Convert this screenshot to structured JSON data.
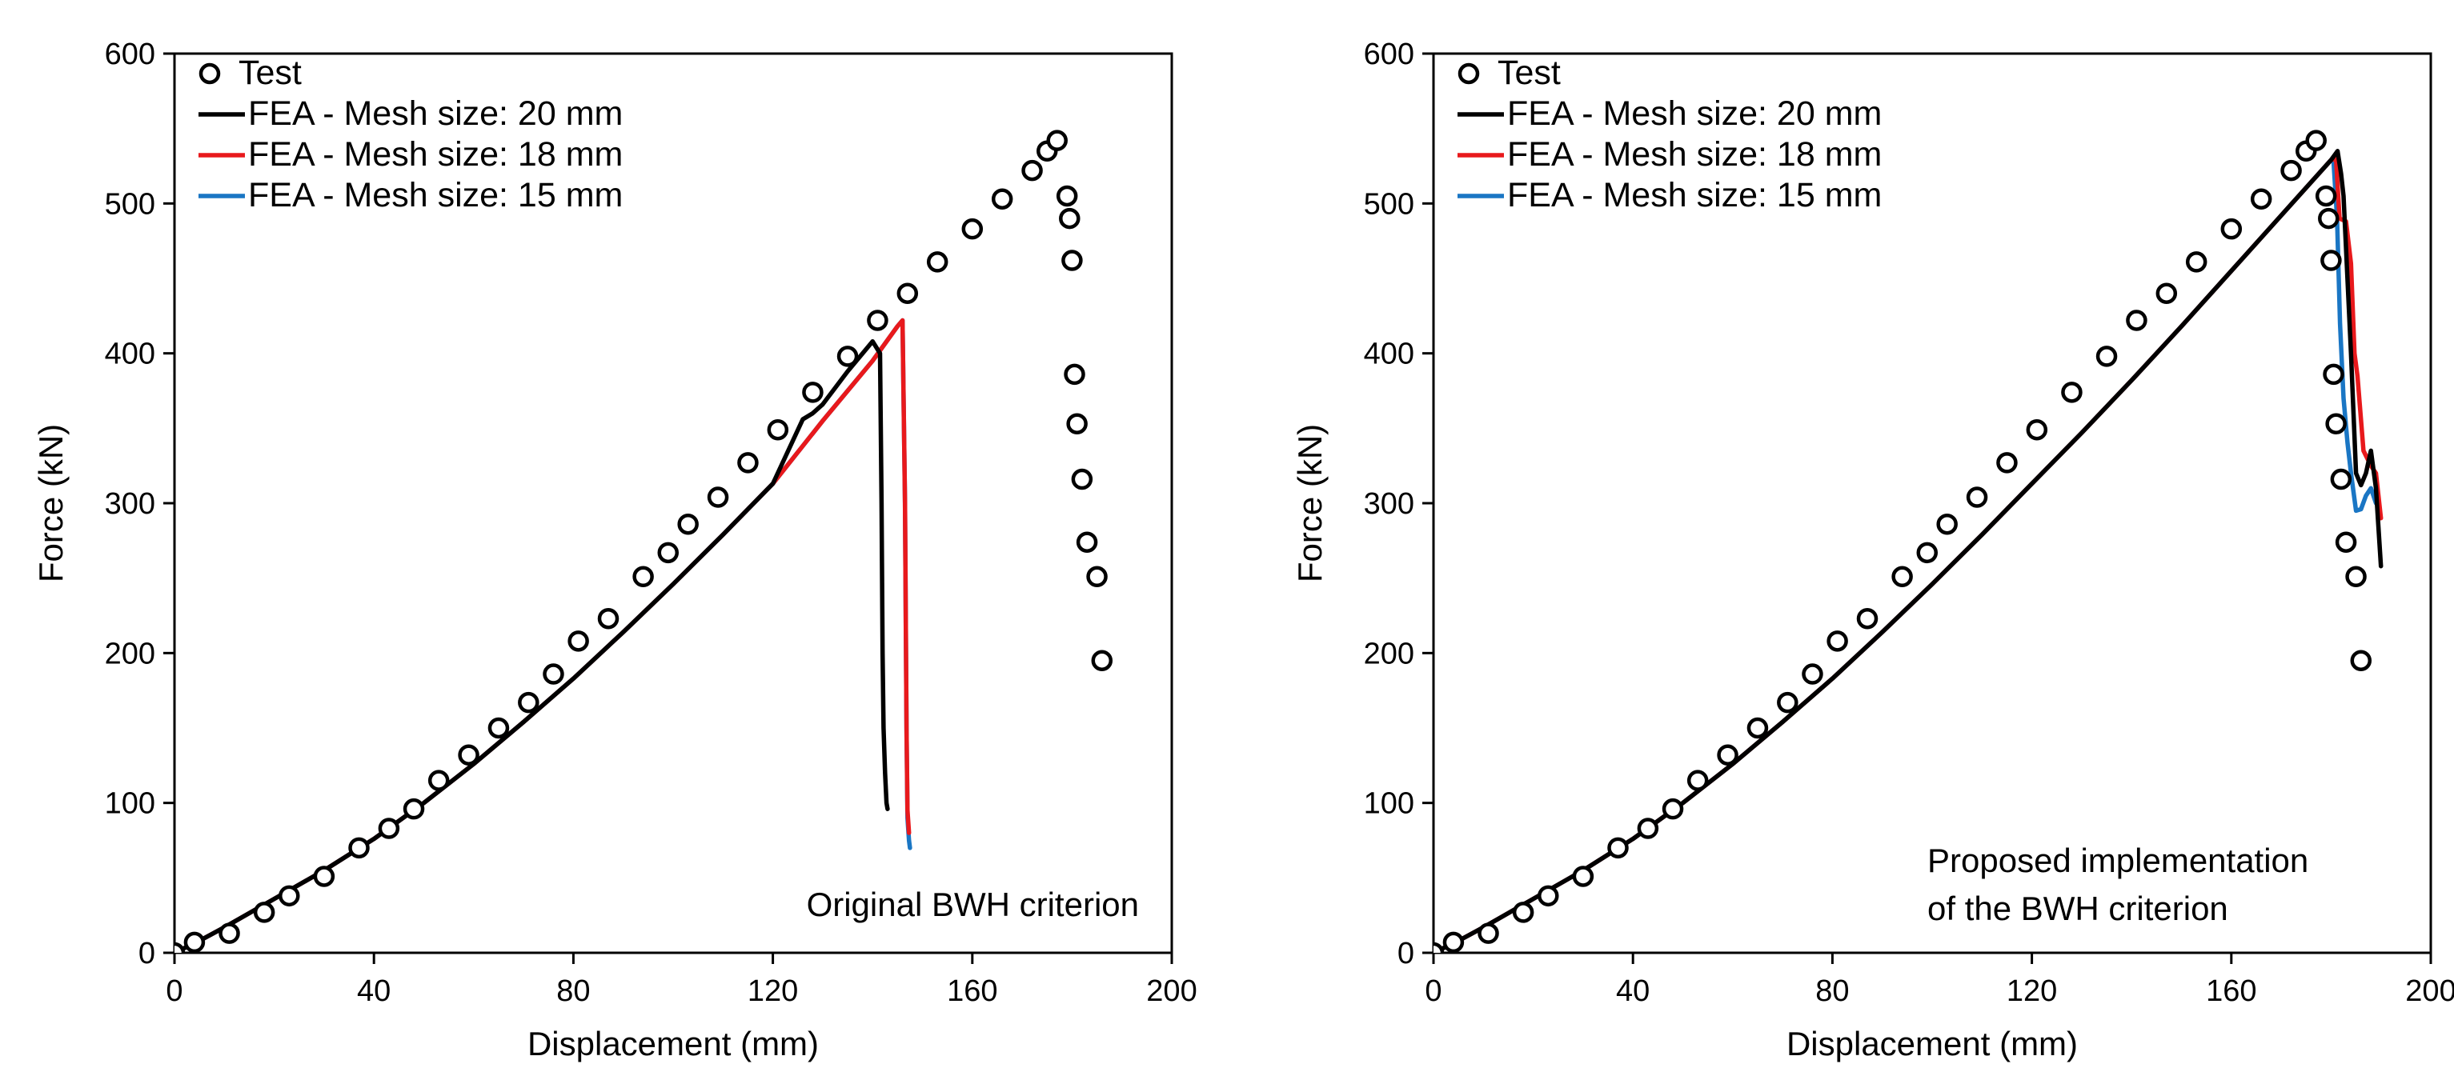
{
  "chart_data": [
    {
      "type": "line",
      "xlabel": "Displacement (mm)",
      "ylabel": "Force (kN)",
      "xlim": [
        0,
        200
      ],
      "ylim": [
        0,
        600
      ],
      "xticks": [
        0,
        40,
        80,
        120,
        160,
        200
      ],
      "yticks": [
        0,
        100,
        200,
        300,
        400,
        500,
        600
      ],
      "grid": false,
      "legend_position": "top-left",
      "annotation": [
        "Original BWH criterion"
      ],
      "test": {
        "name": "Test",
        "x": [
          0,
          4,
          11,
          18,
          23,
          30,
          37,
          43,
          48,
          53,
          59,
          65,
          71,
          76,
          81,
          87,
          94,
          99,
          103,
          109,
          115,
          121,
          128,
          135,
          141,
          147,
          153,
          160,
          166,
          172,
          175,
          177,
          179,
          179.5,
          180,
          180.5,
          181,
          182,
          183,
          185,
          186
        ],
        "y": [
          0,
          7,
          13,
          27,
          38,
          51,
          70,
          83,
          96,
          115,
          132,
          150,
          167,
          186,
          208,
          223,
          251,
          267,
          286,
          304,
          327,
          349,
          374,
          398,
          422,
          440,
          461,
          483,
          503,
          522,
          535,
          542,
          505,
          490,
          462,
          386,
          353,
          316,
          274,
          251,
          195
        ]
      },
      "series": [
        {
          "name": "FEA - Mesh size: 20 mm",
          "color": "#000000",
          "x": [
            0,
            5,
            10,
            20,
            30,
            40,
            50,
            60,
            70,
            80,
            90,
            100,
            110,
            120,
            126,
            128,
            130,
            135,
            140,
            141.5,
            141.8,
            142,
            142.2,
            142.5,
            142.8,
            143
          ],
          "y": [
            0,
            8,
            17,
            36,
            55,
            76,
            100,
            126,
            154,
            183,
            214,
            246,
            279,
            313,
            356,
            360,
            366,
            388,
            408,
            400,
            300,
            200,
            150,
            120,
            100,
            96
          ]
        },
        {
          "name": "FEA - Mesh size: 18 mm",
          "color": "#e8191c",
          "x": [
            0,
            5,
            10,
            20,
            30,
            40,
            50,
            60,
            70,
            80,
            90,
            100,
            110,
            120,
            130,
            140,
            145,
            146,
            146.5,
            146.8,
            147,
            147.3
          ],
          "y": [
            0,
            8,
            17,
            36,
            55,
            76,
            100,
            126,
            154,
            183,
            214,
            246,
            279,
            313,
            355,
            395,
            418,
            422,
            300,
            150,
            95,
            80
          ]
        },
        {
          "name": "FEA - Mesh size: 15 mm",
          "color": "#1a76c4",
          "x": [
            0,
            5,
            10,
            20,
            30,
            40,
            50,
            60,
            70,
            80,
            90,
            100,
            110,
            120,
            130,
            140,
            145,
            146,
            146.5,
            146.8,
            147,
            147.3,
            147.5
          ],
          "y": [
            0,
            8,
            17,
            36,
            55,
            76,
            100,
            126,
            154,
            183,
            214,
            246,
            279,
            313,
            355,
            395,
            418,
            422,
            300,
            150,
            90,
            75,
            70
          ]
        }
      ]
    },
    {
      "type": "line",
      "xlabel": "Displacement (mm)",
      "ylabel": "Force (kN)",
      "xlim": [
        0,
        200
      ],
      "ylim": [
        0,
        600
      ],
      "xticks": [
        0,
        40,
        80,
        120,
        160,
        200
      ],
      "yticks": [
        0,
        100,
        200,
        300,
        400,
        500,
        600
      ],
      "grid": false,
      "legend_position": "top-left",
      "annotation": [
        "Proposed implementation",
        "of the BWH criterion"
      ],
      "test": {
        "name": "Test",
        "x": [
          0,
          4,
          11,
          18,
          23,
          30,
          37,
          43,
          48,
          53,
          59,
          65,
          71,
          76,
          81,
          87,
          94,
          99,
          103,
          109,
          115,
          121,
          128,
          135,
          141,
          147,
          153,
          160,
          166,
          172,
          175,
          177,
          179,
          179.5,
          180,
          180.5,
          181,
          182,
          183,
          185,
          186
        ],
        "y": [
          0,
          7,
          13,
          27,
          38,
          51,
          70,
          83,
          96,
          115,
          132,
          150,
          167,
          186,
          208,
          223,
          251,
          267,
          286,
          304,
          327,
          349,
          374,
          398,
          422,
          440,
          461,
          483,
          503,
          522,
          535,
          542,
          505,
          490,
          462,
          386,
          353,
          316,
          274,
          251,
          195
        ]
      },
      "series": [
        {
          "name": "FEA - Mesh size: 20 mm",
          "color": "#000000",
          "x": [
            0,
            5,
            10,
            20,
            30,
            40,
            50,
            60,
            70,
            80,
            90,
            100,
            110,
            120,
            130,
            140,
            150,
            160,
            170,
            180,
            181.3,
            182,
            182.5,
            183,
            184,
            185,
            186,
            187,
            188,
            189,
            190
          ],
          "y": [
            0,
            8,
            17,
            36,
            55,
            76,
            100,
            126,
            154,
            183,
            214,
            246,
            279,
            313,
            347,
            382,
            418,
            455,
            492,
            529,
            535,
            520,
            505,
            470,
            400,
            320,
            312,
            320,
            335,
            310,
            258
          ]
        },
        {
          "name": "FEA - Mesh size: 18 mm",
          "color": "#e8191c",
          "x": [
            0,
            5,
            10,
            20,
            30,
            40,
            50,
            60,
            70,
            80,
            90,
            100,
            110,
            120,
            130,
            140,
            150,
            160,
            170,
            180,
            181,
            181.7,
            183,
            184,
            184.7,
            185.3,
            186.5,
            188,
            189,
            190
          ],
          "y": [
            0,
            8,
            17,
            36,
            55,
            76,
            100,
            126,
            154,
            183,
            214,
            246,
            279,
            313,
            347,
            382,
            418,
            455,
            492,
            529,
            530,
            490,
            488,
            460,
            400,
            385,
            335,
            325,
            320,
            290
          ]
        },
        {
          "name": "FEA - Mesh size: 15 mm",
          "color": "#1a76c4",
          "x": [
            0,
            5,
            10,
            20,
            30,
            40,
            50,
            60,
            70,
            80,
            90,
            100,
            110,
            120,
            130,
            140,
            150,
            160,
            170,
            180,
            180.5,
            181.2,
            181.8,
            182.5,
            183.3,
            184,
            185,
            186,
            187,
            188,
            189
          ],
          "y": [
            0,
            8,
            17,
            36,
            55,
            76,
            100,
            126,
            154,
            183,
            214,
            246,
            279,
            313,
            347,
            382,
            418,
            455,
            492,
            529,
            528,
            490,
            420,
            370,
            340,
            320,
            295,
            296,
            305,
            310,
            300
          ]
        }
      ]
    }
  ]
}
